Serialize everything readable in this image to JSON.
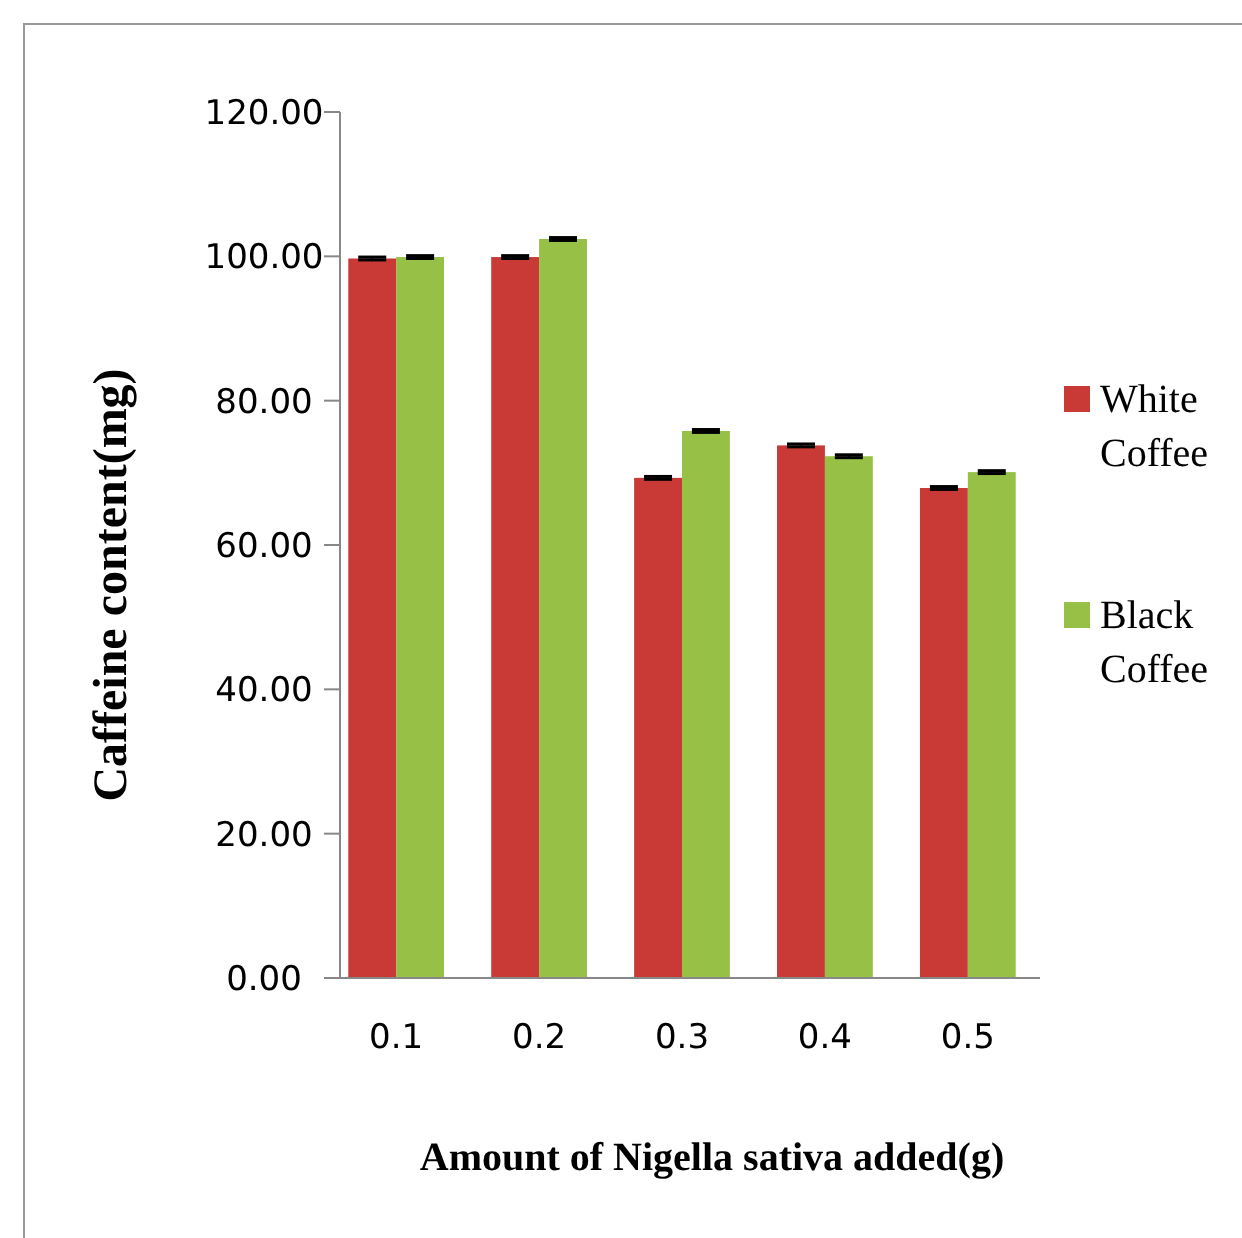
{
  "chart_data": {
    "type": "bar",
    "xlabel": "Amount of Nigella sativa added(g)",
    "ylabel": "Caffeine content(mg)",
    "categories": [
      "0.1",
      "0.2",
      "0.3",
      "0.4",
      "0.5"
    ],
    "series": [
      {
        "name": "White Coffee",
        "color": "#c93a37",
        "values": [
          99.7,
          99.9,
          69.3,
          73.8,
          67.9
        ],
        "errors": [
          0.2,
          0.2,
          0.2,
          0.2,
          0.2
        ]
      },
      {
        "name": "Black Coffee",
        "color": "#96c046",
        "values": [
          99.9,
          102.4,
          75.8,
          72.3,
          70.1
        ],
        "errors": [
          0.2,
          0.2,
          0.2,
          0.2,
          0.2
        ]
      }
    ],
    "ylim": [
      0,
      120
    ],
    "yticks": [
      {
        "value": 0,
        "label": "0.00"
      },
      {
        "value": 20,
        "label": "20.00"
      },
      {
        "value": 40,
        "label": "40.00"
      },
      {
        "value": 60,
        "label": "60.00"
      },
      {
        "value": 80,
        "label": "80.00"
      },
      {
        "value": 100,
        "label": "100.00"
      },
      {
        "value": 120,
        "label": "120.00"
      }
    ],
    "legend": "right",
    "grid": false
  }
}
